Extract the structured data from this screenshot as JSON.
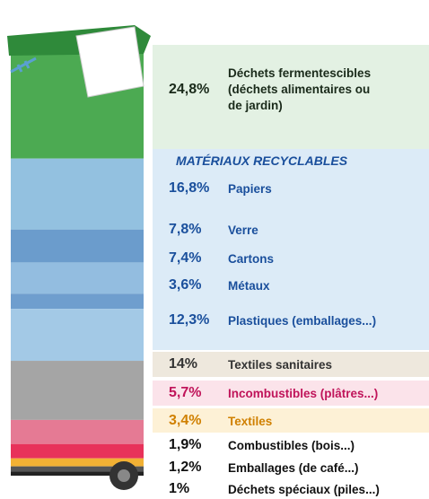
{
  "chart_data": {
    "type": "stacked-bin",
    "group_label": "MATÉRIAUX RECYCLABLES",
    "segments": [
      {
        "name": "Déchets fermentescibles (déchets alimentaires ou de jardin)",
        "value": 24.8,
        "value_label": "24,8%",
        "color": "#4caa52",
        "label_color": "#1a2a1a"
      },
      {
        "name": "Papiers",
        "value": 16.8,
        "value_label": "16,8%",
        "color": "#93c1e0",
        "label_color": "#1a4f9c"
      },
      {
        "name": "Verre",
        "value": 7.8,
        "value_label": "7,8%",
        "color": "#6b9ccc",
        "label_color": "#1a4f9c"
      },
      {
        "name": "Cartons",
        "value": 7.4,
        "value_label": "7,4%",
        "color": "#93bde0",
        "label_color": "#1a4f9c"
      },
      {
        "name": "Métaux",
        "value": 3.6,
        "value_label": "3,6%",
        "color": "#6f9ece",
        "label_color": "#1a4f9c"
      },
      {
        "name": "Plastiques (emballages...)",
        "value": 12.3,
        "value_label": "12,3%",
        "color": "#a3c9e6",
        "label_color": "#1a4f9c"
      },
      {
        "name": "Textiles sanitaires",
        "value": 14,
        "value_label": "14%",
        "color": "#a5a5a5",
        "label_color": "#333333"
      },
      {
        "name": "Incombustibles (plâtres...)",
        "value": 5.7,
        "value_label": "5,7%",
        "color": "#e57a94",
        "label_color": "#c0145a"
      },
      {
        "name": "Textiles",
        "value": 3.4,
        "value_label": "3,4%",
        "color": "#e8325a",
        "label_color": "#d08000"
      },
      {
        "name": "Combustibles (bois...)",
        "value": 1.9,
        "value_label": "1,9%",
        "color": "#f2b134",
        "label_color": "#111111"
      },
      {
        "name": "Emballages (de café...)",
        "value": 1.2,
        "value_label": "1,2%",
        "color": "#555555",
        "label_color": "#111111"
      },
      {
        "name": "Déchets spéciaux (piles...)",
        "value": 1,
        "value_label": "1%",
        "color": "#222222",
        "label_color": "#111111"
      }
    ]
  }
}
